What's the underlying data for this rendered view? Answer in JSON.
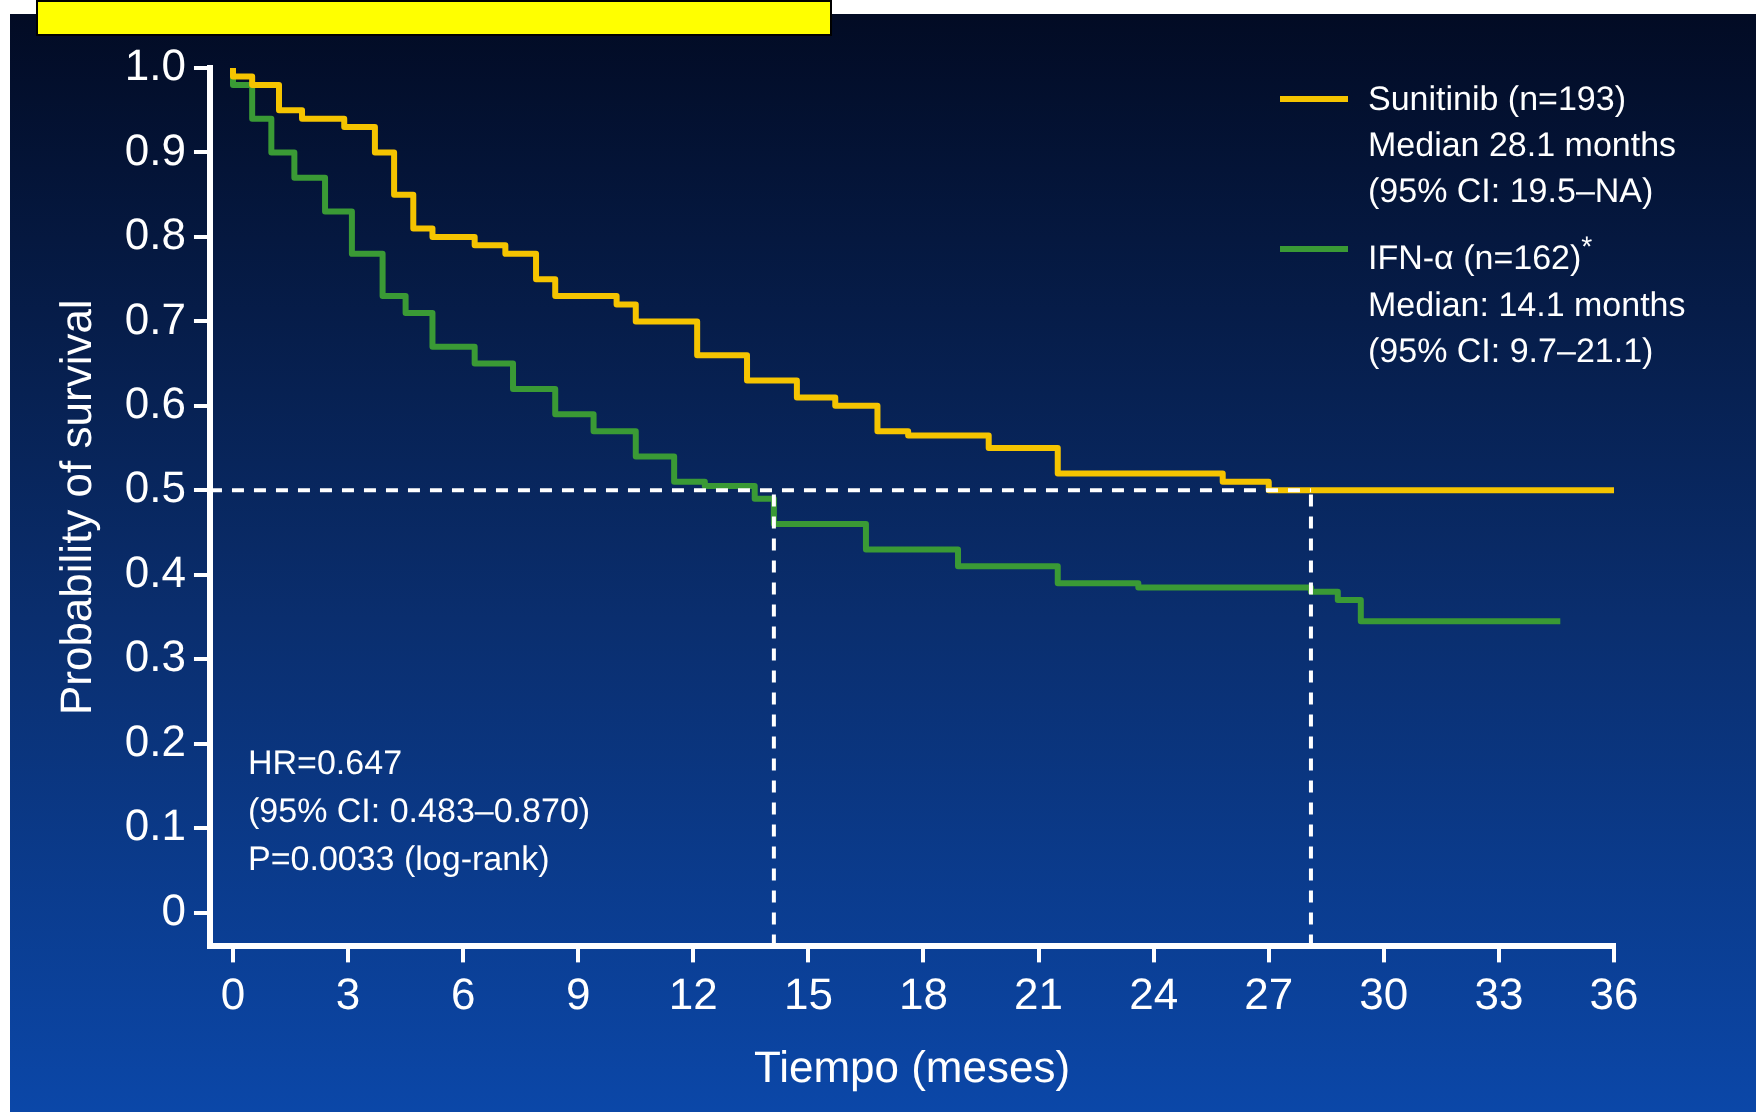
{
  "chart_data": {
    "type": "step",
    "xlabel": "Tiempo (meses)",
    "ylabel": "Probability of survival",
    "xlim": [
      -0.6,
      36
    ],
    "xticks": [
      0,
      3,
      6,
      9,
      12,
      15,
      18,
      21,
      24,
      27,
      30,
      33,
      36
    ],
    "ylim": [
      -0.04,
      1.0
    ],
    "yticks": [
      0,
      {
        "value": 0.1,
        "label": "0.1"
      },
      {
        "value": 0.2,
        "label": "0.2"
      },
      {
        "value": 0.3,
        "label": "0.3"
      },
      {
        "value": 0.4,
        "label": "0.4"
      },
      {
        "value": 0.5,
        "label": "0.5"
      },
      {
        "value": 0.6,
        "label": "0.6"
      },
      {
        "value": 0.7,
        "label": "0.7"
      },
      {
        "value": 0.8,
        "label": "0.8"
      },
      {
        "value": 0.9,
        "label": "0.9"
      },
      {
        "value": 1.0,
        "label": "1.0"
      }
    ],
    "series": [
      {
        "name": "Sunitinib (n=193)\nMedian 28.1 months\n(95% CI: 19.5–NA)",
        "color": "#f5c400",
        "x": [
          0,
          0.5,
          1.2,
          1.8,
          2.9,
          3.7,
          4.2,
          4.7,
          5.2,
          6.3,
          7.1,
          7.9,
          8.4,
          10,
          10.5,
          12.1,
          13.4,
          14.7,
          15.7,
          16.8,
          17.6,
          19.7,
          21.5,
          23.2,
          25.8,
          27,
          28.1,
          36
        ],
        "values": [
          1.0,
          0.99,
          0.98,
          0.95,
          0.94,
          0.93,
          0.9,
          0.85,
          0.81,
          0.8,
          0.79,
          0.78,
          0.75,
          0.73,
          0.72,
          0.7,
          0.66,
          0.63,
          0.61,
          0.6,
          0.57,
          0.565,
          0.55,
          0.52,
          0.52,
          0.51,
          0.5,
          0.5
        ]
      },
      {
        "name": "IFN-α (n=162)$^{*}$\nMedian: 14.1 months\n(95% CI: 9.7–21.1)",
        "color": "#3a9a35",
        "x": [
          0,
          0.5,
          1,
          1.6,
          2.4,
          3.1,
          3.9,
          4.5,
          5.2,
          6.3,
          7.3,
          8.4,
          9.4,
          10.5,
          11.5,
          12.3,
          13.6,
          14.1,
          16.5,
          18.9,
          21.5,
          23.6,
          24.4,
          28.1,
          28.8,
          29.4,
          29.5,
          34.6
        ],
        "values": [
          1.0,
          0.98,
          0.94,
          0.9,
          0.87,
          0.83,
          0.78,
          0.73,
          0.71,
          0.67,
          0.65,
          0.62,
          0.59,
          0.57,
          0.54,
          0.51,
          0.505,
          0.49,
          0.46,
          0.43,
          0.41,
          0.39,
          0.385,
          0.385,
          0.38,
          0.37,
          0.345,
          0.345
        ]
      }
    ],
    "ref_lines": [
      {
        "axis": "y",
        "value": 0.5,
        "color": "#ffffff",
        "line_style": "dashed"
      },
      {
        "axis": "x",
        "value": 14.1,
        "color": "#ffffff",
        "line_style": "dashed"
      },
      {
        "axis": "x",
        "value": 28.1,
        "color": "#ffffff",
        "line_style": "dashed"
      }
    ],
    "annotations": [
      "HR=0.647",
      "(95% CI: 0.483–0.870)",
      "P=0.0033 (log-rank)"
    ],
    "legend": "top right",
    "marker": "none"
  }
}
